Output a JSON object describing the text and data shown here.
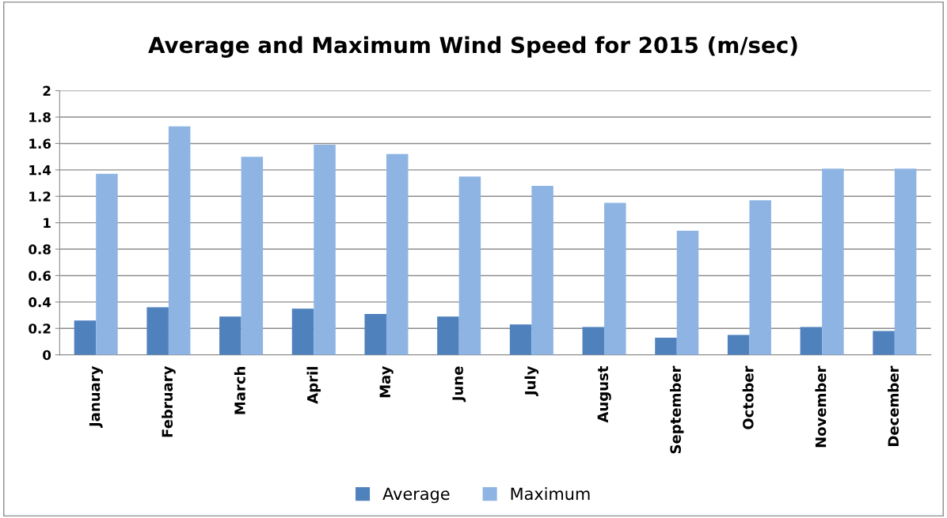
{
  "chart_data": {
    "type": "bar",
    "title": "Average and Maximum Wind Speed for 2015 (m/sec)",
    "categories": [
      "January",
      "February",
      "March",
      "April",
      "May",
      "June",
      "July",
      "August",
      "September",
      "October",
      "November",
      "December"
    ],
    "series": [
      {
        "name": "Average",
        "color": "#4f81bd",
        "values": [
          0.26,
          0.36,
          0.29,
          0.35,
          0.31,
          0.29,
          0.23,
          0.21,
          0.13,
          0.15,
          0.21,
          0.18
        ]
      },
      {
        "name": "Maximum",
        "color": "#8eb4e3",
        "values": [
          1.37,
          1.73,
          1.5,
          1.59,
          1.52,
          1.35,
          1.28,
          1.15,
          0.94,
          1.17,
          1.41,
          1.41
        ]
      }
    ],
    "ylim": [
      0,
      2
    ],
    "yticks": [
      0,
      0.2,
      0.4,
      0.6,
      0.8,
      1,
      1.2,
      1.4,
      1.6,
      1.8,
      2
    ],
    "grid": "y",
    "legend": "bottom"
  }
}
